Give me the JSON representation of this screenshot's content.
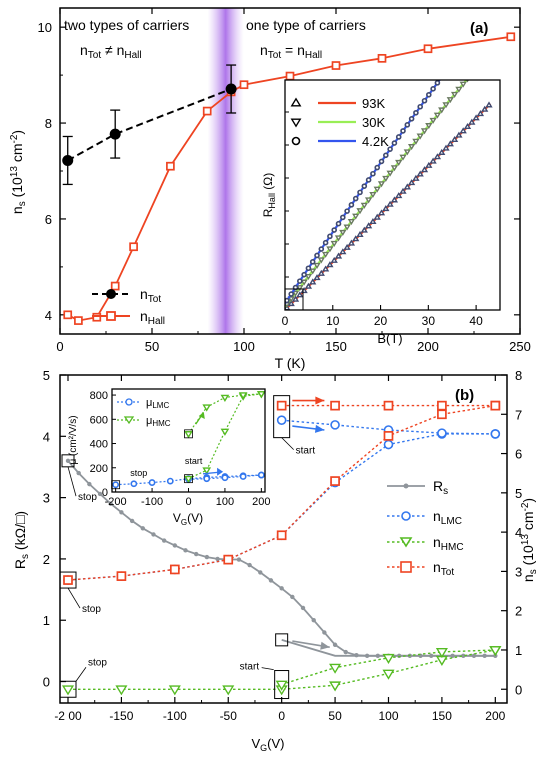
{
  "chart_data": [
    {
      "id": "a",
      "type": "scatter",
      "panel_label": "(a)",
      "xlabel": "T (K)",
      "ylabel": "n",
      "ylabel_sub": "s",
      "ylabel_rest": " (10",
      "ylabel_sup": "13",
      "ylabel_end": " cm",
      "ylabel_sup2": "-2",
      "ylabel_close": ")",
      "xlim": [
        0,
        250
      ],
      "ylim": [
        3.6,
        10.4
      ],
      "xticks": [
        0,
        50,
        100,
        150,
        200,
        250
      ],
      "yticks": [
        4,
        6,
        8,
        10
      ],
      "annotations": {
        "left_title": "two types of carriers",
        "right_title": "one type of carriers",
        "left_eq_a": "n",
        "left_eq_a_sub": "Tot",
        "left_eq_op": " ≠ n",
        "left_eq_b_sub": "Hall",
        "right_eq_a": "n",
        "right_eq_a_sub": "Tot",
        "right_eq_op": " = n",
        "right_eq_b_sub": "Hall"
      },
      "shaded_band_x": 90,
      "legend": [
        {
          "label": "n",
          "sub": "Tot",
          "series": "nTot"
        },
        {
          "label": "n",
          "sub": "Hall",
          "series": "nHall"
        }
      ],
      "series": [
        {
          "key": "nTot",
          "x": [
            4.2,
            30,
            93
          ],
          "y": [
            7.22,
            7.77,
            8.71
          ],
          "err": [
            0.5,
            0.5,
            0.5
          ],
          "color": "#000000",
          "style": "dashed",
          "marker": "filled-circle"
        },
        {
          "key": "nHall",
          "x": [
            4.2,
            10,
            20,
            30,
            40,
            60,
            80,
            93,
            100,
            125,
            150,
            175,
            200,
            245
          ],
          "y": [
            4.0,
            3.88,
            3.95,
            4.6,
            5.42,
            7.1,
            8.25,
            8.65,
            8.8,
            8.98,
            9.2,
            9.35,
            9.55,
            9.8
          ],
          "color": "#ee4422",
          "style": "solid",
          "marker": "open-square"
        }
      ],
      "inset": {
        "xlabel": "B(T)",
        "ylabel": "R",
        "ylabel_sub": "Hall",
        "ylabel_unit": " (Ω)",
        "xlim": [
          0,
          45
        ],
        "xticks": [
          0,
          10,
          20,
          30,
          40
        ],
        "legend": [
          {
            "label": "93K",
            "color": "#ee4422",
            "marker": "triangle-up"
          },
          {
            "label": "30K",
            "color": "#99ee55",
            "marker": "triangle-down"
          },
          {
            "label": "4.2K",
            "color": "#3355ee",
            "marker": "circle"
          }
        ],
        "series": [
          {
            "name": "93K",
            "offset": 0,
            "slope": 0.73,
            "curv": 0.0
          },
          {
            "name": "30K",
            "offset": 0.5,
            "slope": 0.95,
            "curv": 0.0022
          },
          {
            "name": "4.2K",
            "offset": 1.0,
            "slope": 1.1,
            "curv": 0.003
          }
        ]
      }
    },
    {
      "id": "b",
      "type": "line",
      "panel_label": "(b)",
      "xlabel": "V",
      "xlabel_sub": "G",
      "xlabel_rest": "(V)",
      "ylabel_left": "R",
      "ylabel_left_sub": "s",
      "ylabel_left_rest": " (kΩ/□)",
      "ylabel_right": "n",
      "ylabel_right_sub": "s",
      "ylabel_right_rest": " (10",
      "ylabel_right_sup": "13",
      "ylabel_right_end": " cm",
      "ylabel_right_sup2": "-2",
      "ylabel_right_close": ")",
      "xlim": [
        -200,
        210
      ],
      "ylim_left": [
        -0.35,
        5
      ],
      "ylim_right": [
        -0.35,
        8
      ],
      "xticks": [
        -200,
        -150,
        -100,
        -50,
        0,
        50,
        100,
        150,
        200
      ],
      "xticklabels": [
        "-2 00",
        "-150",
        "-100",
        "-50",
        "0",
        "50",
        "100",
        "150",
        "200"
      ],
      "yticks_left": [
        0,
        1,
        2,
        3,
        4,
        5
      ],
      "yticks_right": [
        0,
        1,
        2,
        3,
        4,
        5,
        6,
        7,
        8
      ],
      "legend": [
        {
          "label": "R",
          "sub": "s",
          "series": "Rs"
        },
        {
          "label": "n",
          "sub": "LMC",
          "series": "nLMC"
        },
        {
          "label": "n",
          "sub": "HMC",
          "series": "nHMC"
        },
        {
          "label": "n",
          "sub": "Tot",
          "series": "nTot"
        }
      ],
      "labels": {
        "stop": "stop",
        "start": "start"
      },
      "series": [
        {
          "key": "Rs",
          "axis": "left",
          "color": "#8f959b",
          "marker": "dot",
          "x": [
            -200,
            -190,
            -180,
            -170,
            -160,
            -150,
            -140,
            -130,
            -120,
            -110,
            -100,
            -90,
            -80,
            -70,
            -60,
            -50,
            -40,
            -30,
            -20,
            -10,
            0,
            10,
            20,
            30,
            40,
            50,
            60,
            70,
            80,
            90,
            100,
            110,
            120,
            130,
            140,
            150,
            160,
            170,
            180,
            190,
            200
          ],
          "y": [
            3.6,
            3.4,
            3.22,
            3.06,
            2.9,
            2.76,
            2.62,
            2.5,
            2.4,
            2.3,
            2.22,
            2.14,
            2.08,
            2.03,
            2.0,
            1.99,
            1.99,
            1.9,
            1.78,
            1.65,
            1.52,
            1.38,
            1.2,
            1.0,
            0.8,
            0.6,
            0.48,
            0.43,
            0.42,
            0.42,
            0.42,
            0.42,
            0.42,
            0.42,
            0.42,
            0.42,
            0.42,
            0.42,
            0.42,
            0.42,
            0.42
          ]
        },
        {
          "key": "Rs_return",
          "axis": "left",
          "color": "#8f959b",
          "marker": "none",
          "x": [
            0,
            50,
            100,
            150,
            200
          ],
          "y": [
            0.68,
            0.42,
            0.42,
            0.42,
            0.42
          ]
        },
        {
          "key": "nLMC",
          "axis": "right",
          "color": "#3377ee",
          "marker": "open-circle",
          "x": [
            -200,
            -150,
            -100,
            -50,
            0,
            50,
            100,
            150,
            200
          ],
          "y": [
            2.78,
            2.88,
            3.05,
            3.3,
            3.92,
            5.26,
            6.23,
            6.5,
            6.5
          ]
        },
        {
          "key": "nLMC_return",
          "axis": "right",
          "color": "#3377ee",
          "marker": "open-circle",
          "x": [
            0,
            50,
            100,
            150,
            200
          ],
          "y": [
            6.85,
            6.73,
            6.6,
            6.52,
            6.5
          ]
        },
        {
          "key": "nHMC",
          "axis": "right",
          "color": "#55bb22",
          "marker": "open-triangle-down",
          "x": [
            -200,
            -150,
            -100,
            -50,
            0,
            50,
            100,
            150,
            200
          ],
          "y": [
            0.0,
            0.0,
            0.0,
            0.0,
            0.0,
            0.1,
            0.4,
            0.75,
            1.0
          ]
        },
        {
          "key": "nHMC_return",
          "axis": "right",
          "color": "#55bb22",
          "marker": "open-triangle-down",
          "x": [
            0,
            50,
            100,
            150,
            200
          ],
          "y": [
            0.12,
            0.55,
            0.8,
            0.95,
            1.0
          ]
        },
        {
          "key": "nTot",
          "axis": "right",
          "color": "#ee4422",
          "marker": "open-square",
          "x": [
            -200,
            -150,
            -100,
            -50,
            0,
            50,
            100,
            150,
            200
          ],
          "y": [
            2.78,
            2.88,
            3.05,
            3.3,
            3.92,
            5.3,
            6.45,
            7.0,
            7.22
          ]
        },
        {
          "key": "nTot_return",
          "axis": "right",
          "color": "#ee4422",
          "marker": "open-square",
          "x": [
            0,
            50,
            100,
            150,
            200
          ],
          "y": [
            7.22,
            7.22,
            7.22,
            7.22,
            7.22
          ]
        }
      ],
      "inset": {
        "xlabel": "V",
        "xlabel_sub": "G",
        "xlabel_rest": "(V)",
        "ylabel": "μ (cm²/V/s)",
        "xlim": [
          -210,
          210
        ],
        "ylim": [
          0,
          850
        ],
        "xticks": [
          -200,
          -100,
          0,
          100,
          200
        ],
        "yticks": [
          0,
          200,
          400,
          600,
          800
        ],
        "legend": [
          {
            "label": "μ",
            "sub": "LMC",
            "color": "#3377ee",
            "marker": "open-circle"
          },
          {
            "label": "μ",
            "sub": "HMC",
            "color": "#55bb22",
            "marker": "open-triangle-down"
          }
        ],
        "series": [
          {
            "key": "muLMC",
            "color": "#3377ee",
            "marker": "open-circle",
            "x": [
              -200,
              -150,
              -100,
              -50,
              0,
              50,
              100,
              150,
              200
            ],
            "y": [
              60,
              68,
              78,
              90,
              110,
              120,
              128,
              134,
              140
            ]
          },
          {
            "key": "muLMC_return",
            "color": "#3377ee",
            "marker": "open-circle",
            "x": [
              0,
              50,
              100,
              150,
              200
            ],
            "y": [
              105,
              110,
              118,
              128,
              140
            ]
          },
          {
            "key": "muHMC",
            "color": "#55bb22",
            "marker": "open-triangle-down",
            "x": [
              0,
              50,
              100,
              150,
              200
            ],
            "y": [
              110,
              180,
              500,
              790,
              810
            ]
          },
          {
            "key": "muHMC_return",
            "color": "#55bb22",
            "marker": "open-triangle-down",
            "x": [
              0,
              50,
              100,
              150,
              200
            ],
            "y": [
              480,
              700,
              780,
              800,
              810
            ]
          }
        ]
      }
    }
  ]
}
